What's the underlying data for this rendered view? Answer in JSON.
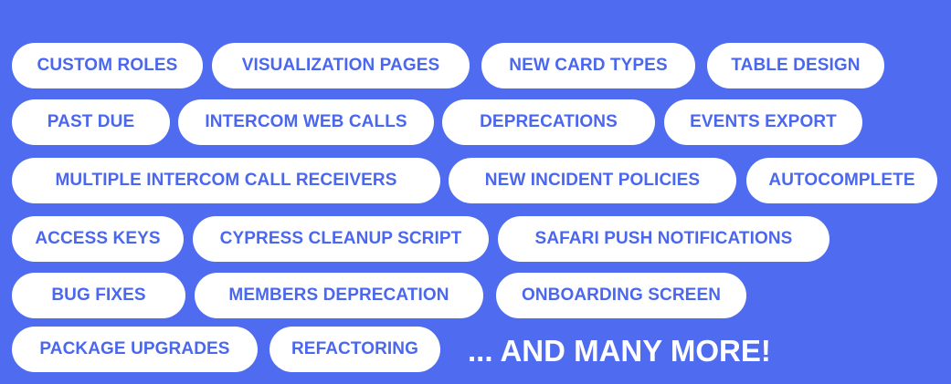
{
  "tags": [
    "CUSTOM ROLES",
    "VISUALIZATION PAGES",
    "NEW CARD TYPES",
    "TABLE DESIGN",
    "PAST DUE",
    "INTERCOM WEB CALLS",
    "DEPRECATIONS",
    "EVENTS EXPORT",
    "MULTIPLE INTERCOM CALL RECEIVERS",
    "NEW INCIDENT POLICIES",
    "AUTOCOMPLETE",
    "ACCESS KEYS",
    "CYPRESS CLEANUP SCRIPT",
    "SAFARI PUSH NOTIFICATIONS",
    "BUG FIXES",
    "MEMBERS DEPRECATION",
    "ONBOARDING SCREEN",
    "PACKAGE UPGRADES",
    "REFACTORING"
  ],
  "more_label": "... AND MANY MORE!",
  "colors": {
    "background": "#4f6cf0",
    "pill_background": "#ffffff",
    "pill_text": "#4a67ee",
    "more_text": "#ffffff"
  }
}
